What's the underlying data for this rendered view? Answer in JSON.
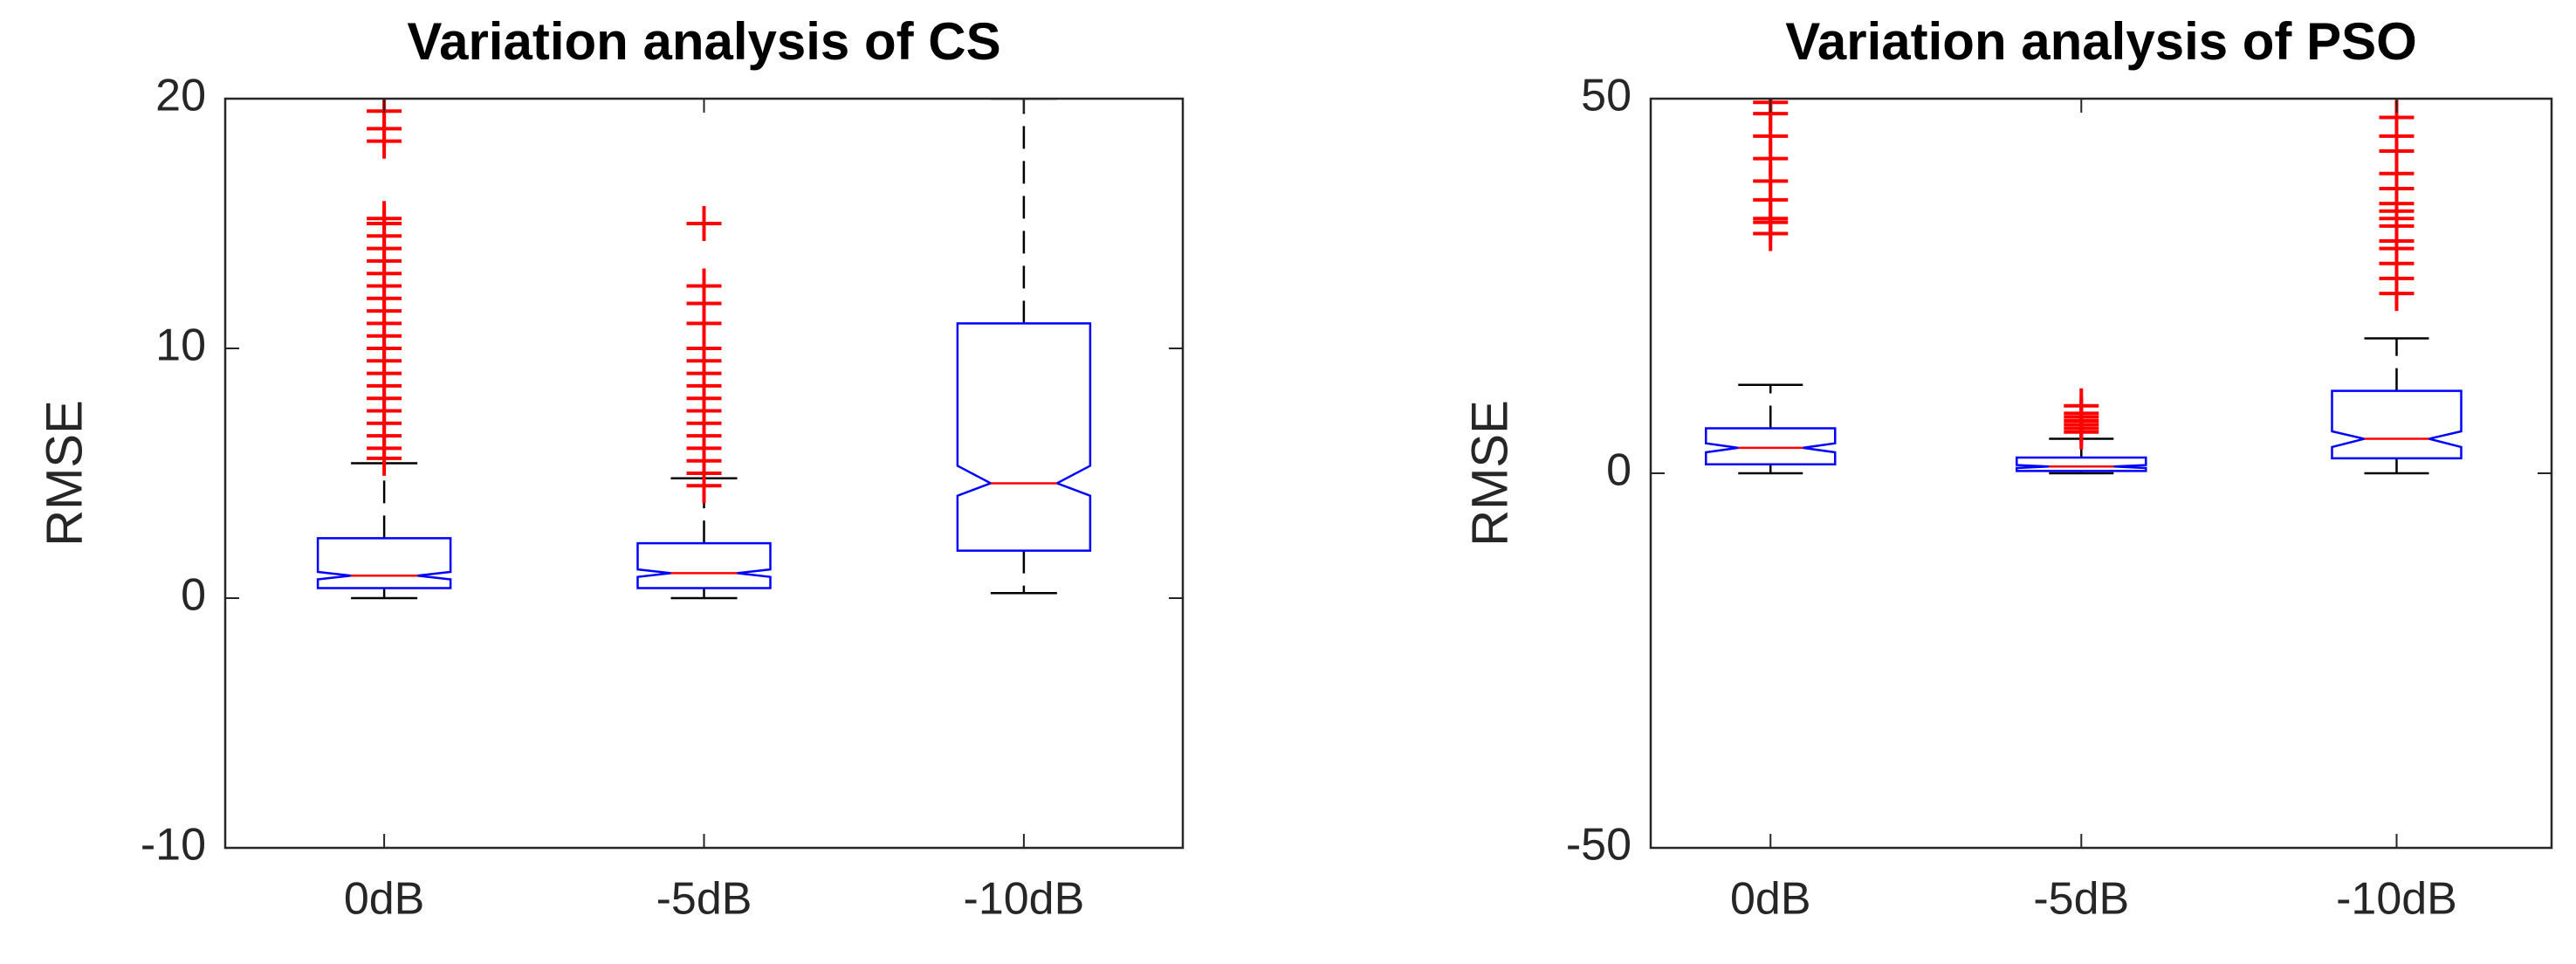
{
  "chart_data": [
    {
      "type": "box",
      "title": "Variation analysis of CS",
      "ylabel": "RMSE",
      "categories": [
        "0dB",
        "-5dB",
        "-10dB"
      ],
      "ylim": [
        -10,
        20
      ],
      "yticks": [
        -10,
        0,
        10,
        20
      ],
      "box_color": "#0000ff",
      "median_color": "#ff0000",
      "outlier_color": "#ff0000",
      "whisker_color": "#000000",
      "whisker_low": [
        0,
        0,
        0.2
      ],
      "q1": [
        0.4,
        0.4,
        1.9
      ],
      "median": [
        0.9,
        1.0,
        4.6
      ],
      "q3": [
        2.4,
        2.2,
        11.0
      ],
      "whisker_high": [
        5.4,
        4.8,
        20
      ],
      "notch_low": [
        0.75,
        0.85,
        4.1
      ],
      "notch_high": [
        1.05,
        1.15,
        5.3
      ],
      "outliers": [
        [
          5.6,
          6,
          6.5,
          7,
          7.5,
          8,
          8.5,
          9,
          9.5,
          10,
          10.5,
          11,
          11.5,
          12,
          12.5,
          13,
          13.5,
          14,
          14.5,
          15,
          15.2,
          18.3,
          18.8,
          19.5
        ],
        [
          4.5,
          5,
          5.5,
          6,
          6.5,
          7,
          7.5,
          8,
          8.5,
          9,
          9.5,
          10,
          11,
          11.8,
          12.5,
          15
        ],
        []
      ]
    },
    {
      "type": "box",
      "title": "Variation analysis of PSO",
      "ylabel": "RMSE",
      "categories": [
        "0dB",
        "-5dB",
        "-10dB"
      ],
      "ylim": [
        -50,
        50
      ],
      "yticks": [
        -50,
        0,
        50
      ],
      "box_color": "#0000ff",
      "median_color": "#ff0000",
      "outlier_color": "#ff0000",
      "whisker_color": "#000000",
      "whisker_low": [
        0,
        0,
        0
      ],
      "q1": [
        1.2,
        0.3,
        2.0
      ],
      "median": [
        3.4,
        0.9,
        4.6
      ],
      "q3": [
        6.0,
        2.1,
        11.0
      ],
      "whisker_high": [
        11.8,
        4.6,
        18
      ],
      "notch_low": [
        2.8,
        0.7,
        3.5
      ],
      "notch_high": [
        4.0,
        1.1,
        5.6
      ],
      "outliers": [
        [
          32,
          33.5,
          34,
          36.5,
          39,
          42,
          45,
          48,
          49.5,
          51
        ],
        [
          5.5,
          6,
          6.5,
          7,
          7.5,
          8,
          9
        ],
        [
          24,
          26,
          28,
          30,
          31,
          33,
          34,
          35,
          36,
          38,
          40,
          43,
          45,
          47.5
        ]
      ]
    }
  ]
}
